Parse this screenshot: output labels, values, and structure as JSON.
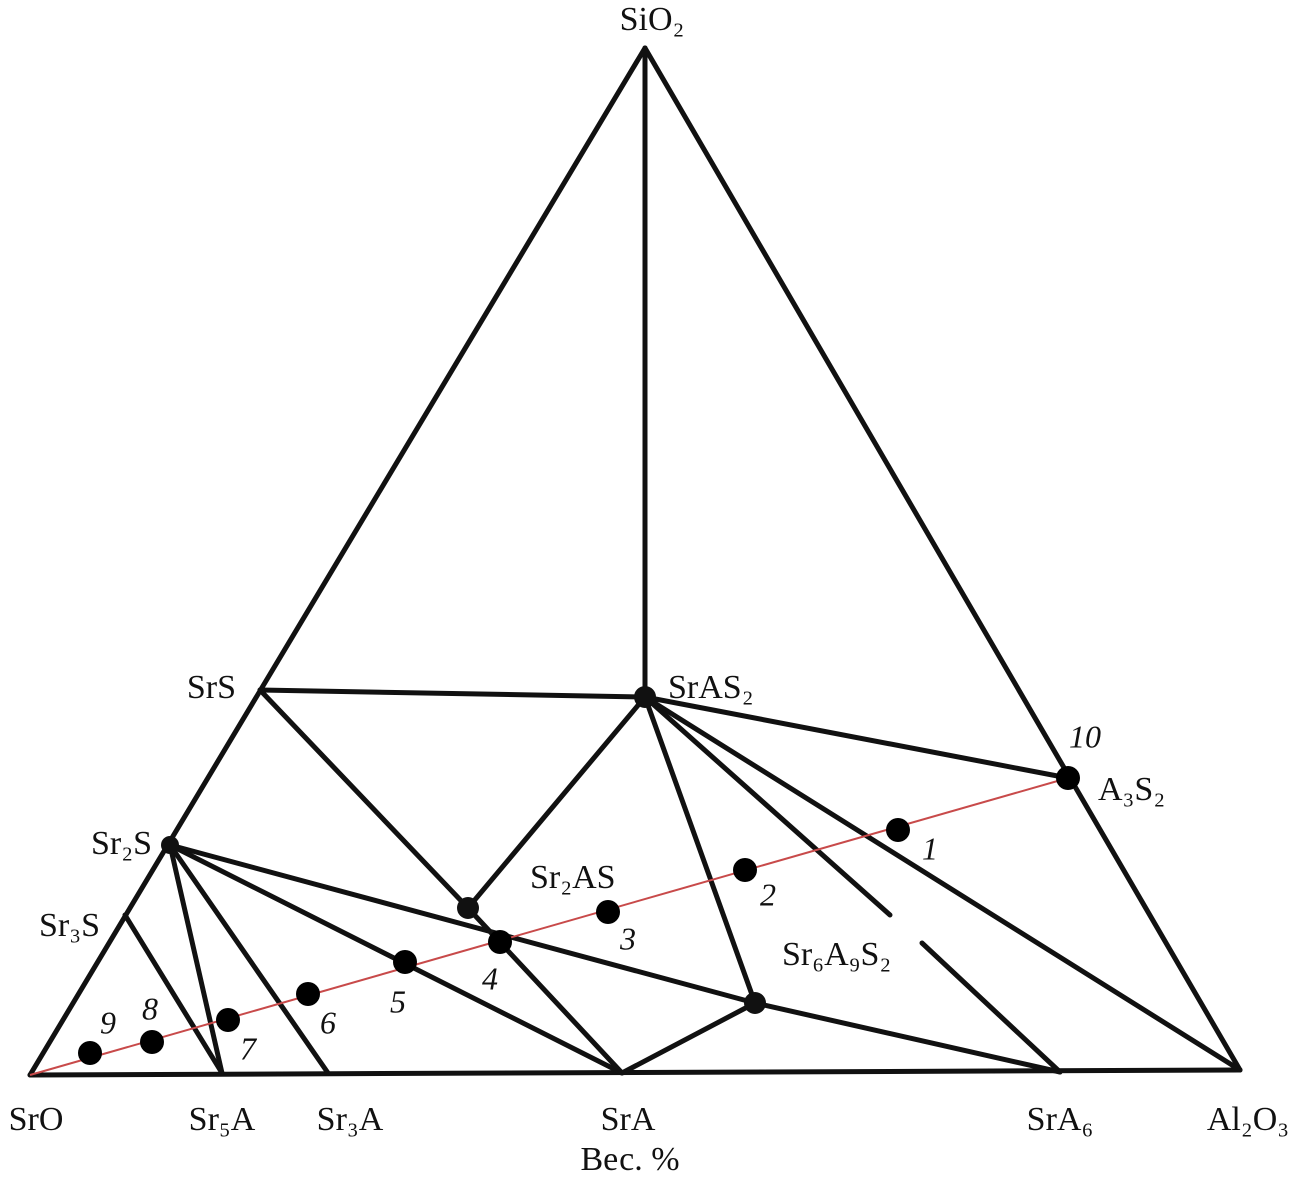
{
  "phases": [
    "SiO₂",
    "SrO",
    "Al₂O₃",
    "SrS",
    "Sr₂S",
    "Sr₃S",
    "Sr₅A",
    "Sr₃A",
    "SrA",
    "SrA₆",
    "SrAS₂",
    "Sr₂AS",
    "Sr₆A₉S₂",
    "A₃S₂"
  ],
  "points": [
    "1",
    "2",
    "3",
    "4",
    "5",
    "6",
    "7",
    "8",
    "9",
    "10"
  ],
  "axis_label": "Вес. %"
}
